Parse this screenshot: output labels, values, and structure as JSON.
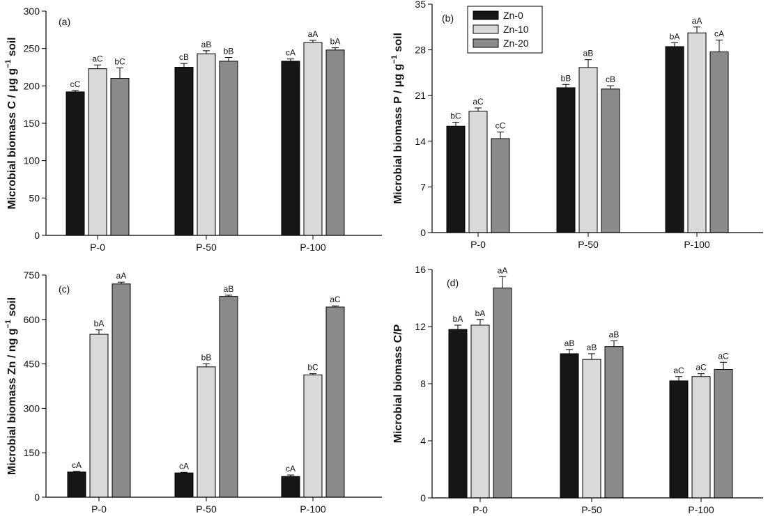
{
  "colors": {
    "Zn-0": "#171717",
    "Zn-10": "#d9d9d9",
    "Zn-20": "#8a8a8a"
  },
  "legend": {
    "entries": [
      "Zn-0",
      "Zn-10",
      "Zn-20"
    ],
    "placement": "top-left of panel (b)"
  },
  "chart_data": [
    {
      "type": "bar",
      "panel_label": "(a)",
      "ylabel": "Microbial biomass C / μg g⁻¹ soil",
      "ylabel_parts": {
        "main": "Microbial biomass C / μg g",
        "sup": "−1",
        "tail": " soil"
      },
      "ylim": [
        0,
        300
      ],
      "yticks": [
        0,
        50,
        100,
        150,
        200,
        250,
        300
      ],
      "categories": [
        "P-0",
        "P-50",
        "P-100"
      ],
      "series": [
        {
          "name": "Zn-0",
          "values": [
            192,
            225,
            233
          ],
          "errors": [
            2,
            5,
            3
          ],
          "labels": [
            "cC",
            "cB",
            "cA"
          ]
        },
        {
          "name": "Zn-10",
          "values": [
            223,
            243,
            258
          ],
          "errors": [
            5,
            4,
            3
          ],
          "labels": [
            "aC",
            "aB",
            "aA"
          ]
        },
        {
          "name": "Zn-20",
          "values": [
            210,
            233,
            248
          ],
          "errors": [
            14,
            5,
            3
          ],
          "labels": [
            "bC",
            "bB",
            "bA"
          ]
        }
      ]
    },
    {
      "type": "bar",
      "panel_label": "(b)",
      "ylabel": "Microbial biomass P / μg g⁻¹ soil",
      "ylabel_parts": {
        "main": "Microbial biomass P / μg g",
        "sup": "−1",
        "tail": " soil"
      },
      "ylim": [
        0,
        35
      ],
      "yticks": [
        0,
        7,
        14,
        21,
        28,
        35
      ],
      "categories": [
        "P-0",
        "P-50",
        "P-100"
      ],
      "series": [
        {
          "name": "Zn-0",
          "values": [
            16.3,
            22.2,
            28.5
          ],
          "errors": [
            0.6,
            0.5,
            0.6
          ],
          "labels": [
            "bC",
            "bB",
            "bA"
          ]
        },
        {
          "name": "Zn-10",
          "values": [
            18.6,
            25.3,
            30.6
          ],
          "errors": [
            0.5,
            1.2,
            0.9
          ],
          "labels": [
            "aC",
            "aB",
            "aA"
          ]
        },
        {
          "name": "Zn-20",
          "values": [
            14.4,
            22.0,
            27.7
          ],
          "errors": [
            1.0,
            0.5,
            1.8
          ],
          "labels": [
            "cC",
            "cB",
            "cA"
          ]
        }
      ]
    },
    {
      "type": "bar",
      "panel_label": "(c)",
      "ylabel": "Microbial biomass Zn / ng g⁻¹ soil",
      "ylabel_parts": {
        "main": "Microbial biomass Zn / ng g",
        "sup": "−1",
        "tail": " soil"
      },
      "ylim": [
        0,
        750
      ],
      "yticks": [
        0,
        150,
        300,
        450,
        600,
        750
      ],
      "categories": [
        "P-0",
        "P-50",
        "P-100"
      ],
      "series": [
        {
          "name": "Zn-0",
          "values": [
            85,
            82,
            70
          ],
          "errors": [
            2,
            2,
            5
          ],
          "labels": [
            "cA",
            "cA",
            "cA"
          ]
        },
        {
          "name": "Zn-10",
          "values": [
            550,
            440,
            413
          ],
          "errors": [
            15,
            10,
            4
          ],
          "labels": [
            "bA",
            "bB",
            "bC"
          ]
        },
        {
          "name": "Zn-20",
          "values": [
            720,
            678,
            642
          ],
          "errors": [
            6,
            4,
            4
          ],
          "labels": [
            "aA",
            "aB",
            "aC"
          ]
        }
      ]
    },
    {
      "type": "bar",
      "panel_label": "(d)",
      "ylabel": "Microbial biomass C/P",
      "ylabel_parts": {
        "main": "Microbial biomass C/P",
        "sup": "",
        "tail": ""
      },
      "ylim": [
        0,
        16
      ],
      "yticks": [
        0,
        4,
        8,
        12,
        16
      ],
      "categories": [
        "P-0",
        "P-50",
        "P-100"
      ],
      "series": [
        {
          "name": "Zn-0",
          "values": [
            11.8,
            10.1,
            8.2
          ],
          "errors": [
            0.3,
            0.3,
            0.3
          ],
          "labels": [
            "bA",
            "aB",
            "aC"
          ]
        },
        {
          "name": "Zn-10",
          "values": [
            12.1,
            9.7,
            8.5
          ],
          "errors": [
            0.4,
            0.4,
            0.2
          ],
          "labels": [
            "bA",
            "aB",
            "aC"
          ]
        },
        {
          "name": "Zn-20",
          "values": [
            14.7,
            10.6,
            9.0
          ],
          "errors": [
            0.8,
            0.4,
            0.5
          ],
          "labels": [
            "aA",
            "aB",
            "aC"
          ]
        }
      ]
    }
  ]
}
